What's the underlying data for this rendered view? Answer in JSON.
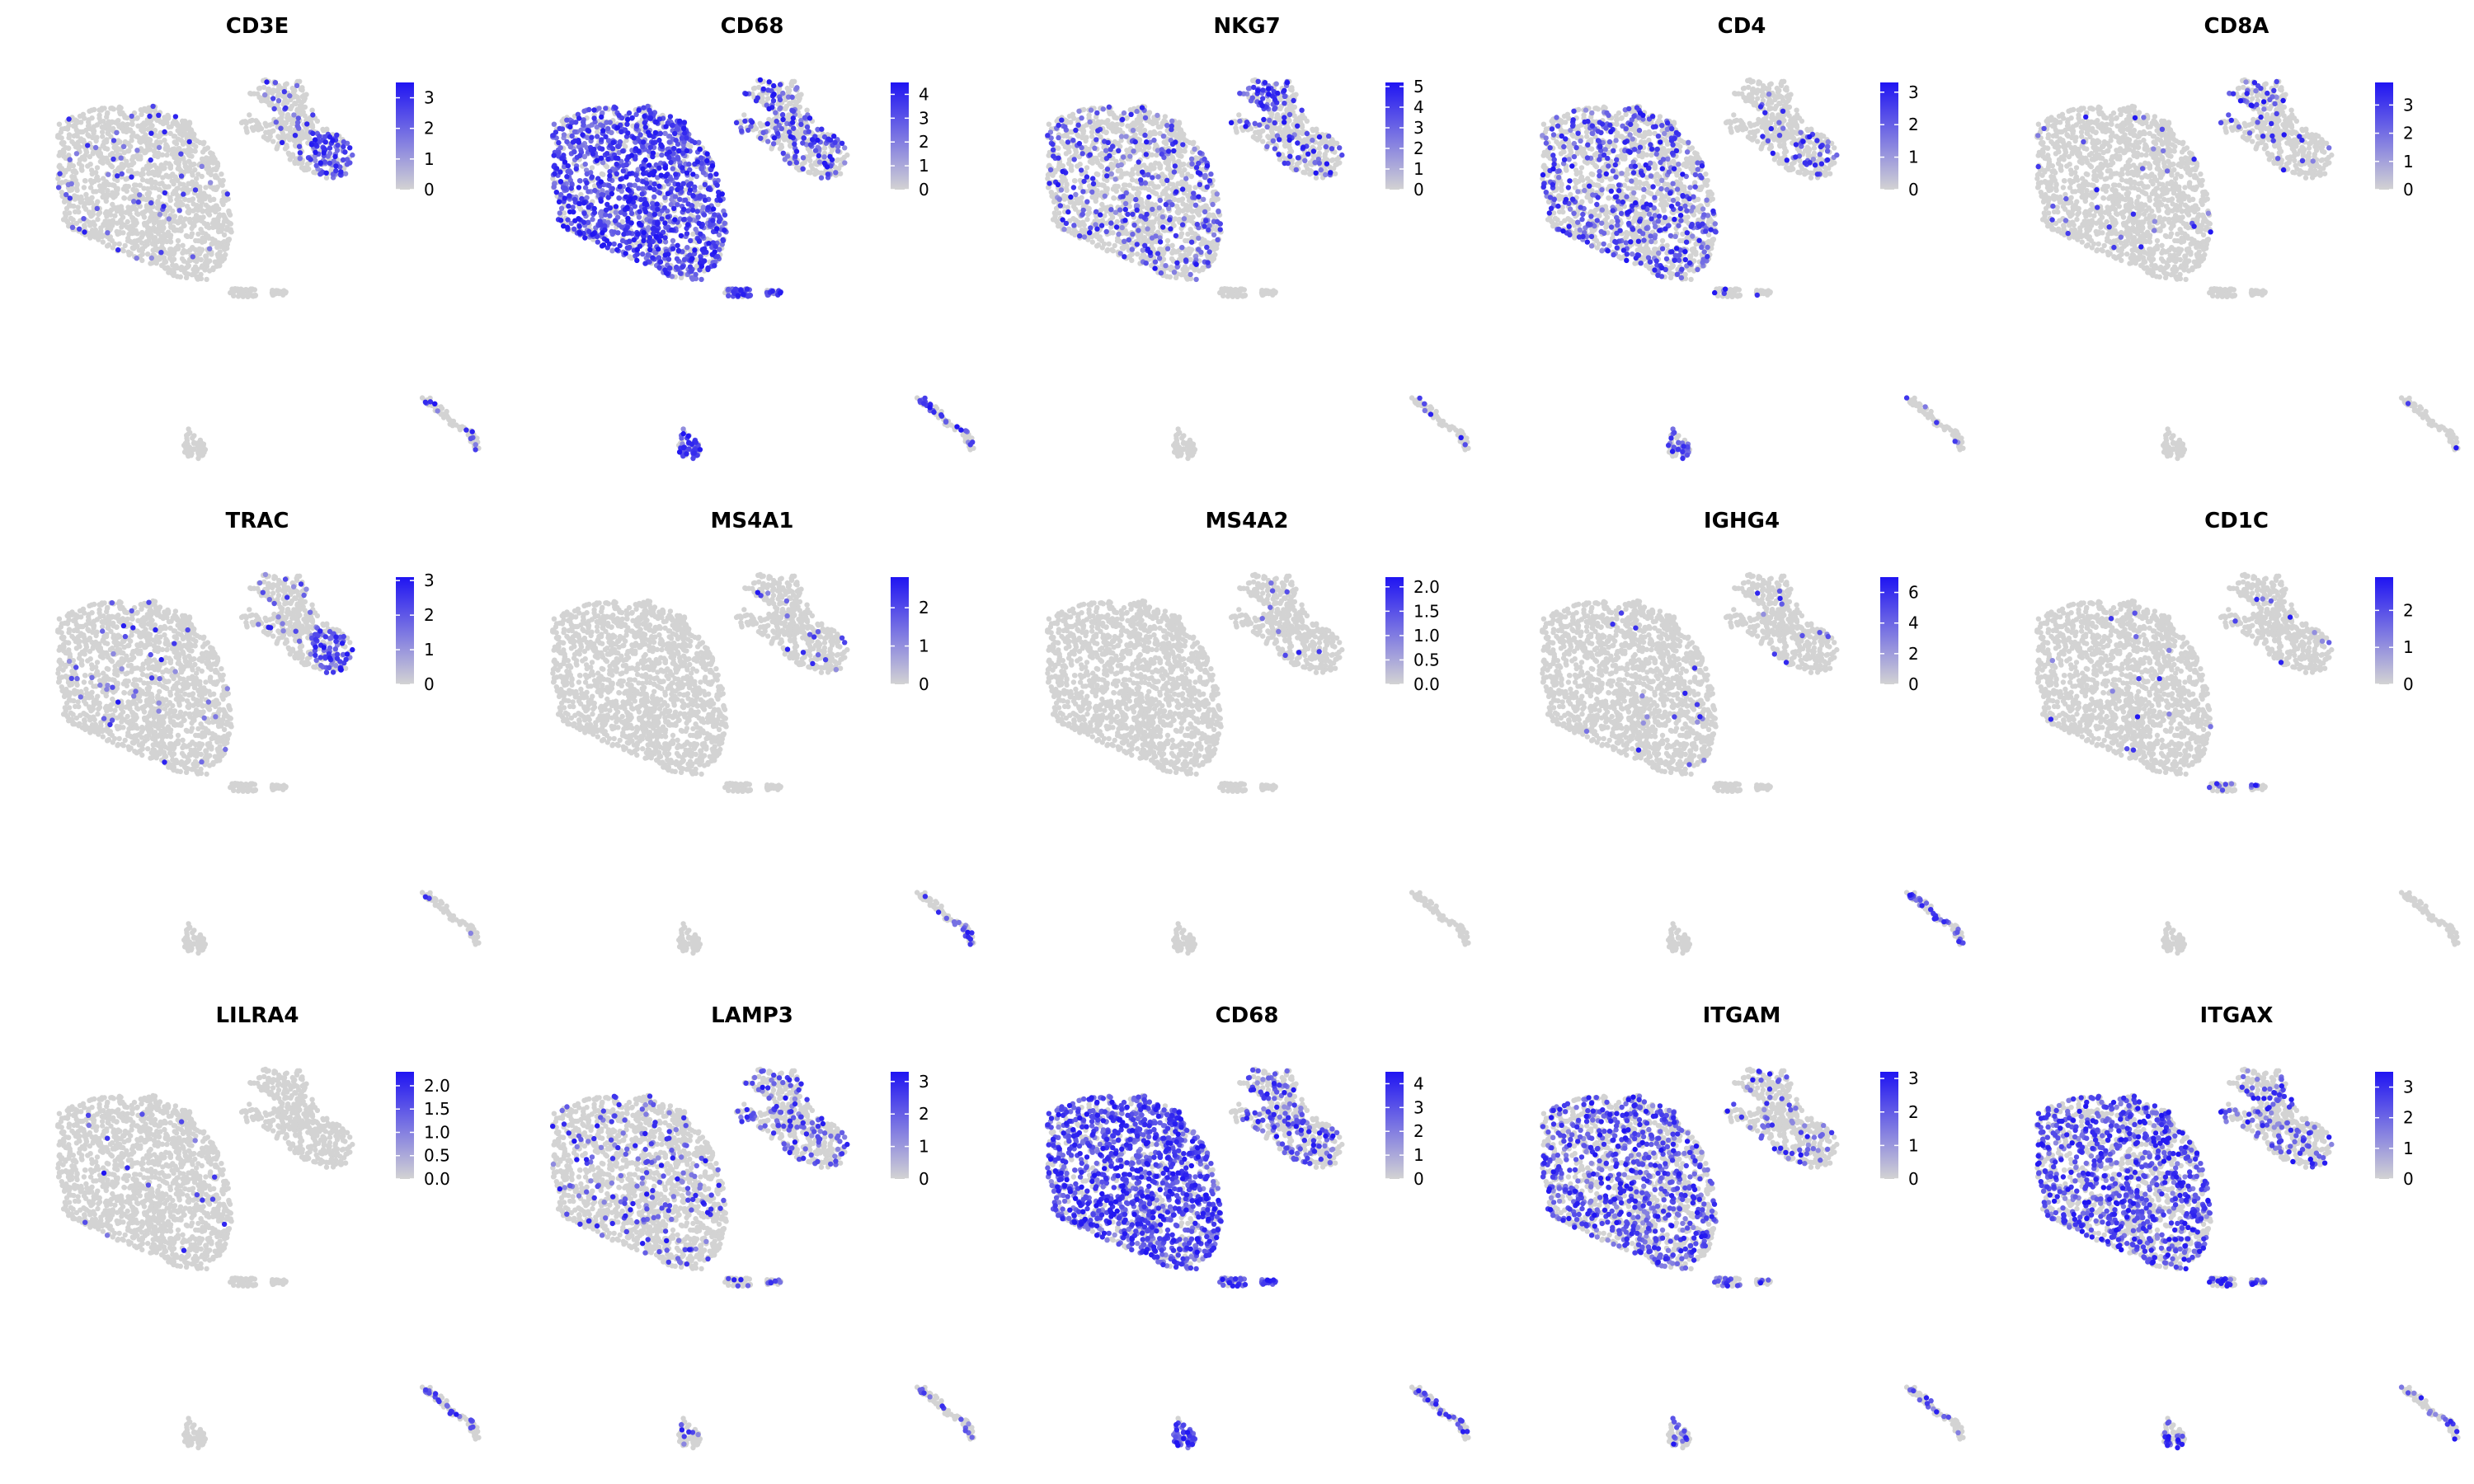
{
  "figure": {
    "type": "feature_plot_grid",
    "rows": 3,
    "cols": 5,
    "colors": {
      "low": "#d3d3d3",
      "high": "#1f14f2",
      "background": "#ffffff",
      "text": "#000000"
    }
  },
  "chart_data": [
    {
      "type": "scatter",
      "title": "CD3E",
      "legend_ticks": [
        "3",
        "2",
        "1",
        "0"
      ],
      "max": 3.5,
      "expr": {
        "top": 0.7,
        "main": 0.03,
        "small": 0.0,
        "bottom": 0.0,
        "thin": 0.15,
        "top_region": "right"
      }
    },
    {
      "type": "scatter",
      "title": "CD68",
      "legend_ticks": [
        "4",
        "3",
        "2",
        "1",
        "0"
      ],
      "max": 4.5,
      "expr": {
        "top": 0.35,
        "main": 0.75,
        "small": 0.7,
        "bottom": 0.8,
        "thin": 0.35,
        "top_region": "mixed"
      }
    },
    {
      "type": "scatter",
      "title": "NKG7",
      "legend_ticks": [
        "5",
        "4",
        "3",
        "2",
        "1",
        "0"
      ],
      "max": 5.2,
      "expr": {
        "top": 0.7,
        "main": 0.2,
        "small": 0.0,
        "bottom": 0.0,
        "thin": 0.1,
        "top_region": "left"
      }
    },
    {
      "type": "scatter",
      "title": "CD4",
      "legend_ticks": [
        "3",
        "2",
        "1",
        "0"
      ],
      "max": 3.3,
      "expr": {
        "top": 0.3,
        "main": 0.3,
        "small": 0.1,
        "bottom": 0.4,
        "thin": 0.1,
        "top_region": "right"
      }
    },
    {
      "type": "scatter",
      "title": "CD8A",
      "legend_ticks": [
        "3",
        "2",
        "1",
        "0"
      ],
      "max": 3.8,
      "expr": {
        "top": 0.35,
        "main": 0.02,
        "small": 0.0,
        "bottom": 0.0,
        "thin": 0.05,
        "top_region": "left"
      }
    },
    {
      "type": "scatter",
      "title": "TRAC",
      "legend_ticks": [
        "3",
        "2",
        "1",
        "0"
      ],
      "max": 3.1,
      "expr": {
        "top": 0.55,
        "main": 0.02,
        "small": 0.0,
        "bottom": 0.0,
        "thin": 0.05,
        "top_region": "right"
      }
    },
    {
      "type": "scatter",
      "title": "MS4A1",
      "legend_ticks": [
        "2",
        "1",
        "0"
      ],
      "max": 2.8,
      "expr": {
        "top": 0.05,
        "main": 0.0,
        "small": 0.0,
        "bottom": 0.0,
        "thin": 0.3,
        "top_region": "mixed"
      }
    },
    {
      "type": "scatter",
      "title": "MS4A2",
      "legend_ticks": [
        "2.0",
        "1.5",
        "1.0",
        "0.5",
        "0.0"
      ],
      "max": 2.2,
      "expr": {
        "top": 0.02,
        "main": 0.0,
        "small": 0.0,
        "bottom": 0.0,
        "thin": 0.0,
        "top_region": "mixed"
      }
    },
    {
      "type": "scatter",
      "title": "IGHG4",
      "legend_ticks": [
        "6",
        "4",
        "2",
        "0"
      ],
      "max": 7.0,
      "expr": {
        "top": 0.03,
        "main": 0.01,
        "small": 0.0,
        "bottom": 0.0,
        "thin": 0.6,
        "top_region": "mixed"
      }
    },
    {
      "type": "scatter",
      "title": "CD1C",
      "legend_ticks": [
        "2",
        "1",
        "0"
      ],
      "max": 2.9,
      "expr": {
        "top": 0.02,
        "main": 0.01,
        "small": 0.3,
        "bottom": 0.0,
        "thin": 0.0,
        "top_region": "mixed"
      }
    },
    {
      "type": "scatter",
      "title": "LILRA4",
      "legend_ticks": [
        "2.0",
        "1.5",
        "1.0",
        "0.5",
        "0.0"
      ],
      "max": 2.3,
      "expr": {
        "top": 0.01,
        "main": 0.01,
        "small": 0.0,
        "bottom": 0.0,
        "thin": 0.3,
        "top_region": "mixed"
      }
    },
    {
      "type": "scatter",
      "title": "LAMP3",
      "legend_ticks": [
        "3",
        "2",
        "1",
        "0"
      ],
      "max": 3.3,
      "expr": {
        "top": 0.3,
        "main": 0.12,
        "small": 0.3,
        "bottom": 0.1,
        "thin": 0.2,
        "top_region": "mixed"
      }
    },
    {
      "type": "scatter",
      "title": "CD68",
      "legend_ticks": [
        "4",
        "3",
        "2",
        "1",
        "0"
      ],
      "max": 4.5,
      "expr": {
        "top": 0.35,
        "main": 0.75,
        "small": 0.7,
        "bottom": 0.8,
        "thin": 0.35,
        "top_region": "mixed"
      }
    },
    {
      "type": "scatter",
      "title": "ITGAM",
      "legend_ticks": [
        "3",
        "2",
        "1",
        "0"
      ],
      "max": 3.2,
      "expr": {
        "top": 0.15,
        "main": 0.45,
        "small": 0.3,
        "bottom": 0.2,
        "thin": 0.2,
        "top_region": "mixed"
      }
    },
    {
      "type": "scatter",
      "title": "ITGAX",
      "legend_ticks": [
        "3",
        "2",
        "1",
        "0"
      ],
      "max": 3.5,
      "expr": {
        "top": 0.25,
        "main": 0.5,
        "small": 0.5,
        "bottom": 0.3,
        "thin": 0.2,
        "top_region": "mixed"
      }
    }
  ]
}
